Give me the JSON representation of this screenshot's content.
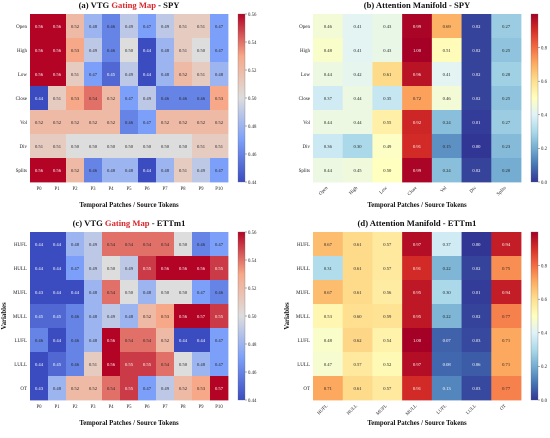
{
  "chart_data": [
    {
      "type": "heatmap",
      "title_parts": [
        {
          "text": "(a) VTG ",
          "color": "#111111"
        },
        {
          "text": "Gating Map",
          "color": "#d6262b"
        },
        {
          "text": " - SPY",
          "color": "#111111"
        }
      ],
      "xlabel": "Temporal Patches / Source Tokens",
      "ylabel": "",
      "rows": [
        "Open",
        "High",
        "Low",
        "Close",
        "Vol",
        "Div",
        "Splits"
      ],
      "cols": [
        "P0",
        "P1",
        "P2",
        "P3",
        "P4",
        "P5",
        "P6",
        "P7",
        "P8",
        "P9",
        "P10"
      ],
      "colormap": "coolwarm",
      "vmin": 0.44,
      "vmax": 0.56,
      "colorbar_ticks": [
        "0.44",
        "0.46",
        "0.48",
        "0.50",
        "0.52",
        "0.54",
        "0.56"
      ],
      "values": [
        [
          0.56,
          0.56,
          0.52,
          0.48,
          0.46,
          0.49,
          0.47,
          0.49,
          0.51,
          0.51,
          0.47
        ],
        [
          0.56,
          0.56,
          0.53,
          0.49,
          0.46,
          0.5,
          0.44,
          0.48,
          0.51,
          0.5,
          0.47
        ],
        [
          0.56,
          0.56,
          0.51,
          0.47,
          0.45,
          0.49,
          0.44,
          0.48,
          0.52,
          0.51,
          0.48
        ],
        [
          0.44,
          0.51,
          0.53,
          0.54,
          0.52,
          0.47,
          0.49,
          0.46,
          0.46,
          0.46,
          0.53
        ],
        [
          0.52,
          0.52,
          0.52,
          0.52,
          0.52,
          0.46,
          0.47,
          0.52,
          0.52,
          0.52,
          0.52
        ],
        [
          0.51,
          0.51,
          0.5,
          0.5,
          0.5,
          0.5,
          0.5,
          0.5,
          0.5,
          0.51,
          0.51
        ],
        [
          0.56,
          0.56,
          0.52,
          0.46,
          0.48,
          0.48,
          0.44,
          0.48,
          0.51,
          0.49,
          0.47
        ]
      ]
    },
    {
      "type": "heatmap",
      "title_parts": [
        {
          "text": "(b) Attention Manifold - SPY",
          "color": "#111111"
        }
      ],
      "xlabel": "Temporal Patches / Source Tokens",
      "ylabel": "",
      "rows": [
        "Open",
        "High",
        "Low",
        "Close",
        "Vol",
        "Div",
        "Splits"
      ],
      "cols": [
        "Open",
        "High",
        "Low",
        "Close",
        "Vol",
        "Div",
        "Splits"
      ],
      "colormap": "rdylbu_r",
      "vmin": 0.0,
      "vmax": 1.0,
      "colorbar_ticks": [
        "0.0",
        "0.2",
        "0.4",
        "0.6",
        "0.8"
      ],
      "values": [
        [
          0.46,
          0.41,
          0.43,
          0.99,
          0.69,
          0.02,
          0.27
        ],
        [
          0.48,
          0.41,
          0.43,
          1.0,
          0.51,
          0.02,
          0.25
        ],
        [
          0.44,
          0.42,
          0.61,
          0.96,
          0.41,
          0.02,
          0.28
        ],
        [
          0.37,
          0.44,
          0.35,
          0.72,
          0.46,
          0.02,
          0.25
        ],
        [
          0.44,
          0.44,
          0.55,
          0.92,
          0.24,
          0.01,
          0.27
        ],
        [
          0.36,
          0.3,
          0.49,
          0.91,
          0.15,
          0.0,
          0.23
        ],
        [
          0.44,
          0.45,
          0.5,
          0.99,
          0.24,
          0.02,
          0.2
        ]
      ]
    },
    {
      "type": "heatmap",
      "title_parts": [
        {
          "text": "(c) VTG ",
          "color": "#111111"
        },
        {
          "text": "Gating Map",
          "color": "#d6262b"
        },
        {
          "text": " - ETTm1",
          "color": "#111111"
        }
      ],
      "xlabel": "Temporal Patches / Source Tokens",
      "ylabel": "Variables",
      "rows": [
        "HUFL",
        "HULL",
        "MUFL",
        "MULL",
        "LUFL",
        "LULL",
        "OT"
      ],
      "cols": [
        "P0",
        "P1",
        "P2",
        "P3",
        "P4",
        "P5",
        "P6",
        "P7",
        "P8",
        "P9",
        "P10"
      ],
      "colormap": "coolwarm",
      "vmin": 0.44,
      "vmax": 0.56,
      "colorbar_ticks": [
        "0.44",
        "0.46",
        "0.48",
        "0.50",
        "0.52",
        "0.54",
        "0.56"
      ],
      "values": [
        [
          0.44,
          0.44,
          0.48,
          0.49,
          0.54,
          0.54,
          0.54,
          0.54,
          0.5,
          0.46,
          0.47
        ],
        [
          0.44,
          0.44,
          0.47,
          0.49,
          0.5,
          0.49,
          0.55,
          0.56,
          0.56,
          0.56,
          0.55
        ],
        [
          0.43,
          0.44,
          0.44,
          0.48,
          0.54,
          0.5,
          0.48,
          0.5,
          0.5,
          0.47,
          0.46
        ],
        [
          0.45,
          0.45,
          0.46,
          0.48,
          0.49,
          0.48,
          0.52,
          0.53,
          0.56,
          0.57,
          0.55
        ],
        [
          0.46,
          0.44,
          0.46,
          0.48,
          0.56,
          0.54,
          0.54,
          0.52,
          0.44,
          0.44,
          0.47
        ],
        [
          0.44,
          0.45,
          0.46,
          0.51,
          0.56,
          0.55,
          0.55,
          0.54,
          0.5,
          0.48,
          0.47
        ],
        [
          0.43,
          0.48,
          0.52,
          0.52,
          0.54,
          0.55,
          0.47,
          0.49,
          0.52,
          0.53,
          0.57
        ]
      ]
    },
    {
      "type": "heatmap",
      "title_parts": [
        {
          "text": "(d) Attention Manifold - ETTm1",
          "color": "#111111"
        }
      ],
      "xlabel": "Temporal Patches / Source Tokens",
      "ylabel": "Variables",
      "rows": [
        "HUFL",
        "HULL",
        "MUFL",
        "MULL",
        "LUFL",
        "LULL",
        "OT"
      ],
      "cols": [
        "HUFL",
        "HULL",
        "MUFL",
        "MULL",
        "LUFL",
        "LULL",
        "OT"
      ],
      "colormap": "rdylbu_r",
      "vmin": 0.0,
      "vmax": 1.0,
      "colorbar_ticks": [
        "0.0",
        "0.2",
        "0.4",
        "0.6",
        "0.8"
      ],
      "values": [
        [
          0.67,
          0.61,
          0.57,
          0.97,
          0.37,
          0.0,
          0.94
        ],
        [
          0.31,
          0.61,
          0.57,
          0.91,
          0.22,
          0.02,
          0.75
        ],
        [
          0.67,
          0.61,
          0.56,
          0.95,
          0.3,
          0.01,
          0.94
        ],
        [
          0.53,
          0.6,
          0.59,
          0.95,
          0.22,
          0.02,
          0.77
        ],
        [
          0.48,
          0.62,
          0.54,
          1.0,
          0.07,
          0.03,
          0.71
        ],
        [
          0.47,
          0.57,
          0.52,
          0.97,
          0.08,
          0.06,
          0.71
        ],
        [
          0.71,
          0.61,
          0.57,
          0.91,
          0.13,
          0.03,
          0.77
        ]
      ]
    }
  ]
}
